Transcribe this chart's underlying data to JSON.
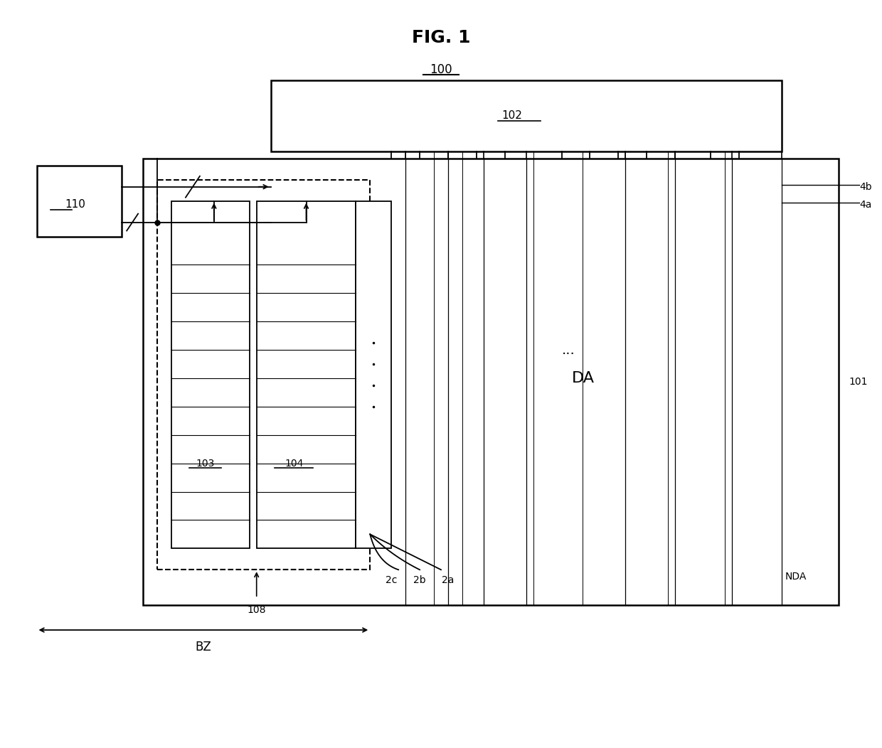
{
  "title": "FIG. 1",
  "bg_color": "#ffffff",
  "fig_width": 12.4,
  "fig_height": 10.52,
  "labels": {
    "title": "FIG. 1",
    "ref100": "100",
    "ref101": "101",
    "ref102": "102",
    "ref103": "103",
    "ref104": "104",
    "ref108": "108",
    "ref110": "110",
    "refDA": "DA",
    "refNDA": "NDA",
    "refBZ": "BZ",
    "ref2a": "2a",
    "ref2b": "2b",
    "ref2c": "2c",
    "ref4a": "4a",
    "ref4b": "4b",
    "dots": "..."
  }
}
